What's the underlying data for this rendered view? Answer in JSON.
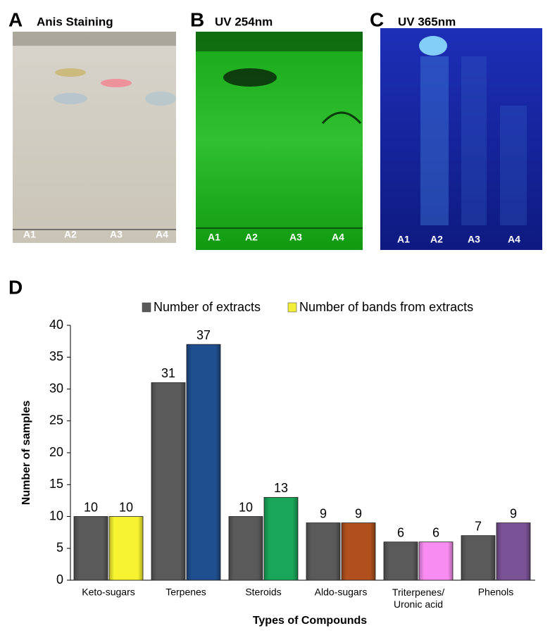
{
  "photo_panels": [
    {
      "letter": "A",
      "title": "Anis Staining",
      "lanes": [
        "A1",
        "A2",
        "A3",
        "A4"
      ]
    },
    {
      "letter": "B",
      "title": "UV 254nm",
      "lanes": [
        "A1",
        "A2",
        "A3",
        "A4"
      ]
    },
    {
      "letter": "C",
      "title": "UV 365nm",
      "lanes": [
        "A1",
        "A2",
        "A3",
        "A4"
      ]
    }
  ],
  "chart_data": {
    "type": "bar",
    "letter": "D",
    "x_label": "Types of Compounds",
    "y_label": "Number of samples",
    "categories": [
      "Keto-sugars",
      "Terpenes",
      "Steroids",
      "Aldo-sugars",
      "Triterpenes/ Uronic acid",
      "Phenols"
    ],
    "series": [
      {
        "name": "Number of extracts",
        "color": "#5a5a5a",
        "values": [
          10,
          31,
          10,
          9,
          6,
          7
        ]
      },
      {
        "name": "Number of bands from extracts",
        "color": "#f2ef3a",
        "colors": [
          "#f7f330",
          "#1f4f8e",
          "#1aa65a",
          "#b0501e",
          "#f98cf0",
          "#7a5296"
        ],
        "values": [
          10,
          37,
          13,
          9,
          6,
          9
        ]
      }
    ],
    "ylim": [
      0,
      40
    ],
    "yticks": [
      0,
      5,
      10,
      15,
      20,
      25,
      30,
      35,
      40
    ]
  }
}
